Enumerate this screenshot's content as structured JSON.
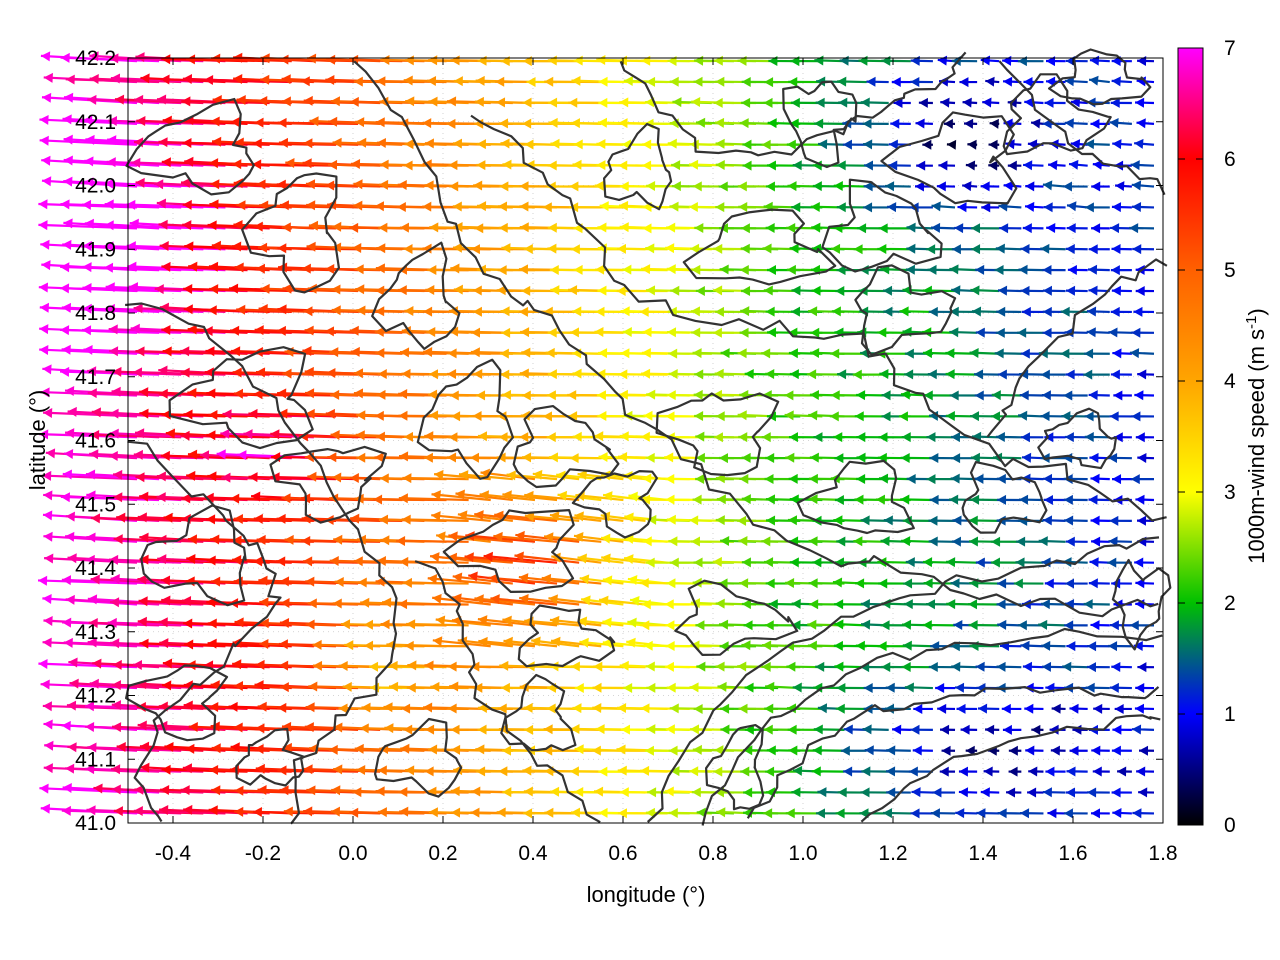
{
  "chart_data": {
    "type": "vector-field",
    "xlabel": "longitude (°)",
    "ylabel": "latitude (°)",
    "xlim": [
      -0.5,
      1.8
    ],
    "ylim": [
      41.0,
      42.2
    ],
    "xticks": [
      "-0.4",
      "-0.2",
      "0.0",
      "0.2",
      "0.4",
      "0.6",
      "0.8",
      "1.0",
      "1.2",
      "1.4",
      "1.6",
      "1.8"
    ],
    "xtick_values": [
      -0.4,
      -0.2,
      0.0,
      0.2,
      0.4,
      0.6,
      0.8,
      1.0,
      1.2,
      1.4,
      1.6,
      1.8
    ],
    "yticks": [
      "41.0",
      "41.1",
      "41.2",
      "41.3",
      "41.4",
      "41.5",
      "41.6",
      "41.7",
      "41.8",
      "41.9",
      "42.0",
      "42.1",
      "42.2"
    ],
    "ytick_values": [
      41.0,
      41.1,
      41.2,
      41.3,
      41.4,
      41.5,
      41.6,
      41.7,
      41.8,
      41.9,
      42.0,
      42.1,
      42.2
    ],
    "grid": true,
    "colorbar": {
      "label_main": "1000m-wind speed (m s",
      "label_sup": "-1",
      "label_close": ")",
      "range": [
        0,
        7
      ],
      "ticks": [
        "0",
        "1",
        "2",
        "3",
        "4",
        "5",
        "6",
        "7"
      ],
      "tick_values": [
        0,
        1,
        2,
        3,
        4,
        5,
        6,
        7
      ],
      "palette": [
        "#000000",
        "#0000ff",
        "#00c000",
        "#ffff00",
        "#ffa500",
        "#ff6000",
        "#ff0000",
        "#ff00ff"
      ]
    },
    "field_regions": {
      "west_strong": {
        "lon_max": 0.3,
        "speed_range": [
          4.0,
          7.0
        ],
        "direction": "toward west-northwest"
      },
      "central_moderate": {
        "lon_range": [
          0.3,
          1.0
        ],
        "speed_range": [
          2.0,
          4.5
        ],
        "direction": "toward west"
      },
      "east_weak": {
        "lon_min": 1.0,
        "speed_range": [
          0.2,
          2.5
        ],
        "direction": "toward west"
      }
    },
    "contour_color": "#333333"
  }
}
